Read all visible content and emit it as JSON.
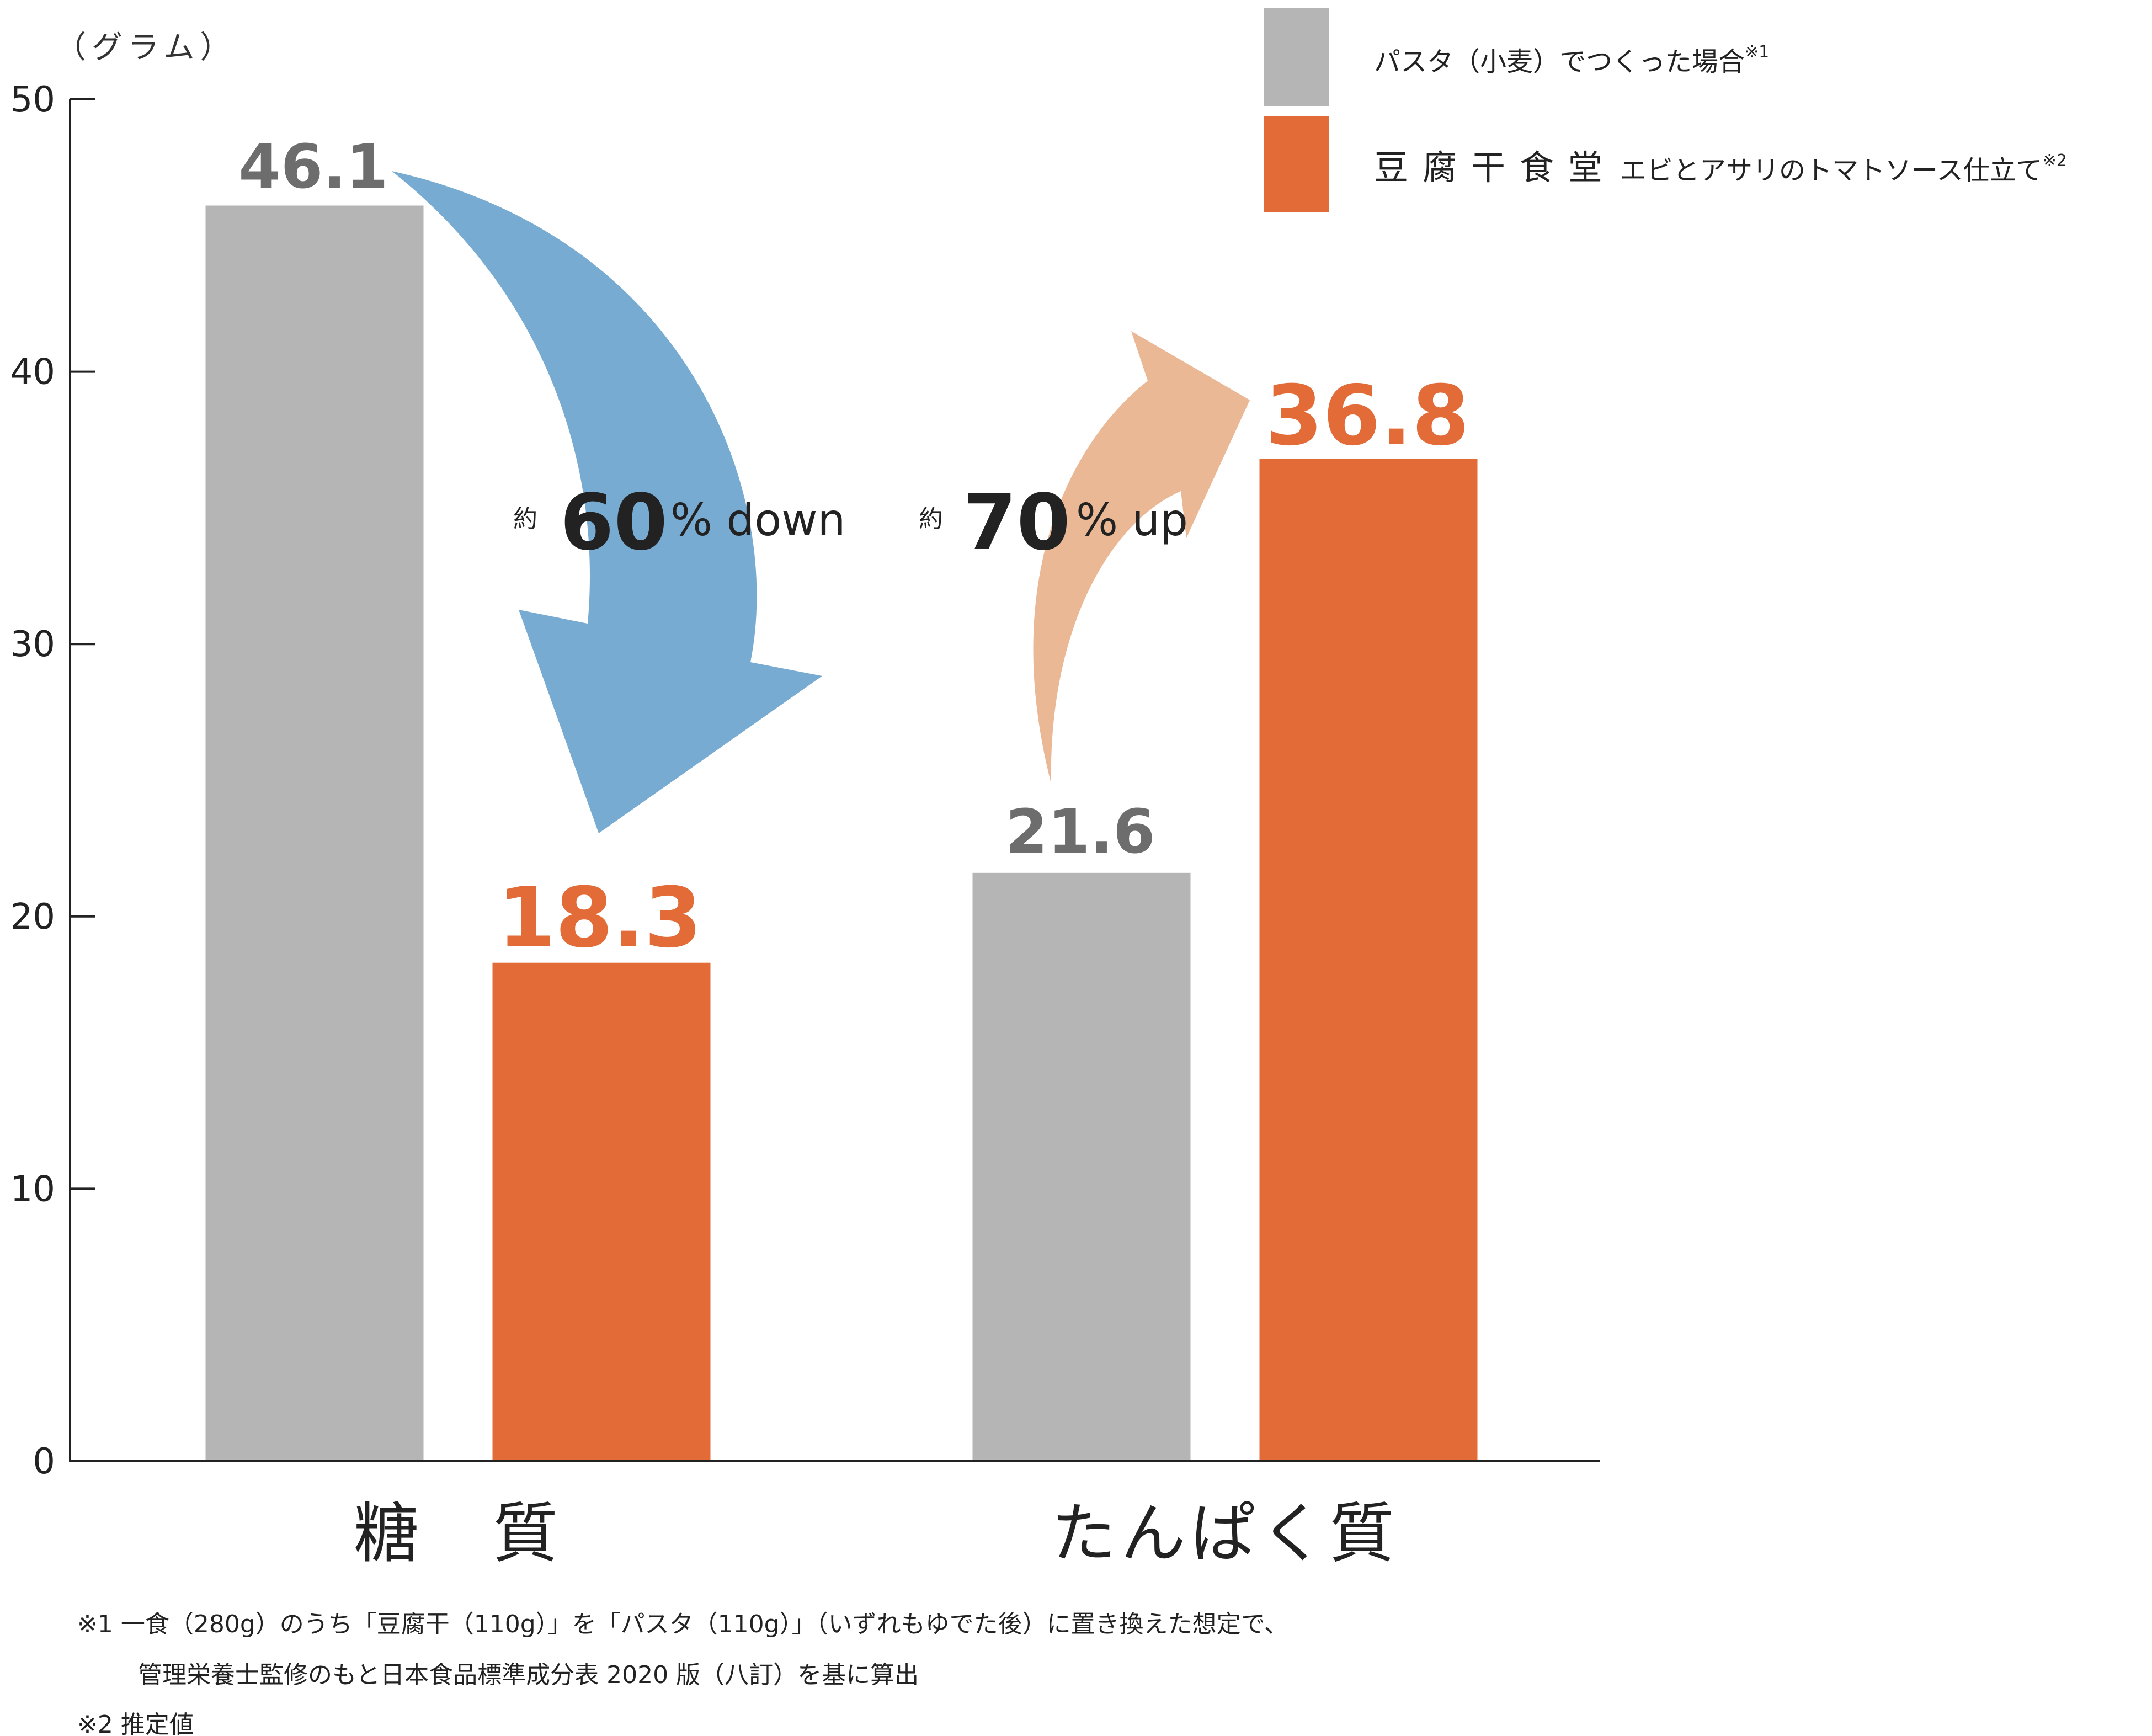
{
  "chart_data": {
    "type": "bar",
    "unit_label": "（グラム）",
    "categories": [
      "糖　質",
      "たんぱく質"
    ],
    "ylim": [
      0,
      50
    ],
    "yticks": [
      0,
      10,
      20,
      30,
      40,
      50
    ],
    "grid": false,
    "legend_position": "top-right",
    "colors": {
      "pasta": "#b4b5b4",
      "tofu": "#e36b37",
      "down_arrow": "#78abd2",
      "up_arrow": "#eab895"
    },
    "series": [
      {
        "key": "pasta",
        "values": [
          46.1,
          21.6
        ],
        "labels": [
          "46.1",
          "21.6"
        ]
      },
      {
        "key": "tofu",
        "values": [
          18.3,
          36.8
        ],
        "labels": [
          "18.3",
          "36.8"
        ]
      }
    ],
    "legend": [
      {
        "key": "pasta",
        "text": "パスタ（小麦）でつくった場合",
        "sup": "※1"
      },
      {
        "key": "tofu",
        "brand": "豆腐干食堂",
        "text": "エビとアサリのトマトソース仕立て",
        "sup": "※2"
      }
    ],
    "annotations": [
      {
        "prefix": "約",
        "number": "60",
        "suffix": "% down"
      },
      {
        "prefix": "約",
        "number": "70",
        "suffix": "% up"
      }
    ]
  },
  "footnotes": [
    "※1  一食（280g）のうち「豆腐干（110g）」を「パスタ（110g）」（いずれもゆでた後）に置き換えた想定で、",
    "管理栄養士監修のもと日本食品標準成分表 2020 版（八訂）を基に算出",
    "※2  推定値"
  ]
}
